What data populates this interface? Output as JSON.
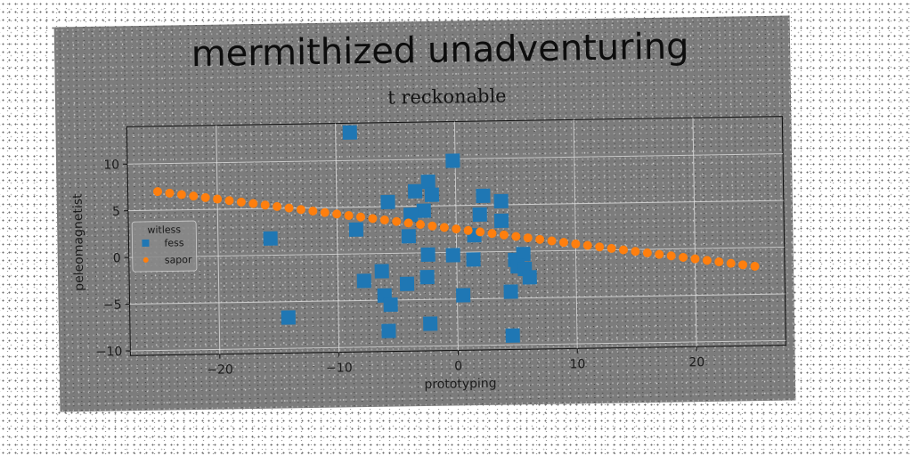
{
  "chart_data": {
    "type": "scatter",
    "suptitle": "mermithized unadventuring",
    "title": "t reckonable",
    "xlabel": "prototyping",
    "ylabel": "peleomagnetist",
    "xlim": [
      -27.5,
      27.5
    ],
    "ylim": [
      -10.5,
      14
    ],
    "xticks": [
      -20,
      -10,
      0,
      10,
      20
    ],
    "yticks": [
      -10,
      -5,
      0,
      5,
      10
    ],
    "grid": true,
    "legend": {
      "title": "witless",
      "placement": "center-left"
    },
    "series": [
      {
        "name": "fess",
        "color": "#1f77b4",
        "marker": "square",
        "points": [
          [
            -8.8,
            13.0
          ],
          [
            -0.2,
            9.8
          ],
          [
            -2.3,
            7.6
          ],
          [
            -3.4,
            6.6
          ],
          [
            -2.0,
            6.2
          ],
          [
            -5.7,
            5.5
          ],
          [
            2.3,
            6.0
          ],
          [
            3.8,
            5.4
          ],
          [
            -2.7,
            4.5
          ],
          [
            -3.8,
            4.1
          ],
          [
            2.0,
            4.0
          ],
          [
            3.8,
            3.3
          ],
          [
            -8.4,
            2.6
          ],
          [
            -15.6,
            1.8
          ],
          [
            -4.0,
            1.8
          ],
          [
            1.5,
            1.8
          ],
          [
            -2.4,
            -0.2
          ],
          [
            -0.3,
            -0.3
          ],
          [
            1.4,
            -0.8
          ],
          [
            4.9,
            -0.9
          ],
          [
            5.6,
            -0.3
          ],
          [
            5.1,
            -1.6
          ],
          [
            5.7,
            -1.9
          ],
          [
            6.1,
            -2.8
          ],
          [
            -6.3,
            -1.9
          ],
          [
            -7.8,
            -2.9
          ],
          [
            -2.5,
            -2.6
          ],
          [
            -4.2,
            -3.3
          ],
          [
            -6.1,
            -4.5
          ],
          [
            4.5,
            -4.3
          ],
          [
            0.5,
            -4.6
          ],
          [
            -5.6,
            -5.5
          ],
          [
            -14.2,
            -6.7
          ],
          [
            -2.3,
            -7.6
          ],
          [
            -5.8,
            -8.3
          ],
          [
            4.6,
            -9.0
          ]
        ]
      },
      {
        "name": "sapor",
        "color": "#ff7f0e",
        "marker": "circle",
        "line": {
          "x_from": -25,
          "x_to": 25,
          "count": 51,
          "slope": -0.18,
          "intercept": 2.5
        }
      }
    ]
  }
}
